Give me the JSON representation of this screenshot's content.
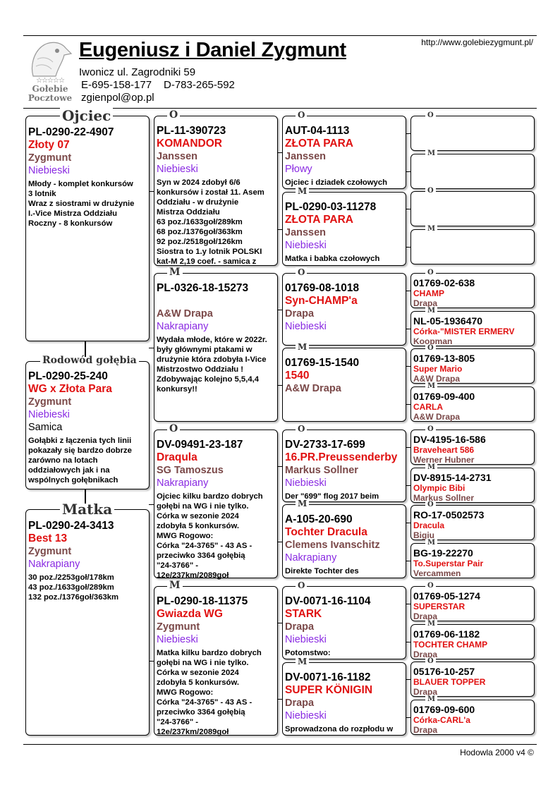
{
  "header": {
    "title": "Eugeniusz i Daniel Zygmunt",
    "url": "http://www.golebiezygmunt.pl/",
    "address": "Iwonicz ul. Zagrodniki 59",
    "phone_e": "E-695-158-177",
    "phone_d": "D-783-265-592",
    "email": "zgienpol@op.pl",
    "logo_text_1": "Gołebie",
    "logo_text_2": "Pocztowe",
    "logo_stars": "☆☆☆☆☆"
  },
  "footer": "Hodowla 2000 v4 ©",
  "main": [
    {
      "label": "Ojciec",
      "ring": "PL-0290-22-4907",
      "name": "Złoty 07",
      "breeder": "Zygmunt",
      "color": "Niebieski",
      "notes": [
        "Młody - komplet konkursów",
        "3 lotnik",
        "Wraz z siostrami w drużynie",
        "I.-Vice Mistrza Oddziału",
        "Roczny - 8 konkursów"
      ]
    },
    {
      "label": "Rodowód gołębia",
      "ring": "PL-0290-25-240",
      "name": "WG x Złota Para",
      "breeder": "Zygmunt",
      "color": "Niebieski",
      "sex": "Samica",
      "notes": [
        "Gołąbki z łączenia tych linii",
        "pokazały się bardzo dobrze",
        "zarówno na lotach",
        "oddziałowych jak i na",
        "wspólnych gołębnikach"
      ]
    },
    {
      "label": "Matka",
      "ring": "PL-0290-24-3413",
      "name": "Best 13",
      "breeder": "Zygmunt",
      "color": "Nakrapiany",
      "notes": [
        "30 poz./2253goł/178km",
        "43 poz./1633goł/289km",
        "132 poz./1376goł/363km"
      ]
    }
  ],
  "gen2": [
    {
      "label": "O",
      "ring": "PL-11-390723",
      "name": "KOMANDOR",
      "breeder": "Janssen",
      "color": "Niebieski",
      "notes": [
        "Syn w 2024 zdobył 6/6",
        "konkursów i został 11. Asem",
        "Oddziału - w drużynie",
        "Mistrza Oddziału",
        "63 poz./1633goł/289km",
        "68 poz./1376goł/363km",
        "92 poz./2518goł/126km",
        "Siostra to 1.y lotnik POLSKI",
        "kat-M 2,19 coef. - samica z"
      ]
    },
    {
      "label": "M",
      "ring": "PL-0326-18-15273",
      "name": "",
      "breeder": "A&W Drapa",
      "color": "Nakrapiany",
      "notes": [
        "Wydała młode, które w 2022r.",
        "były głównymi ptakami w",
        "drużynie która zdobyła I-Vice",
        "Mistrzostwo Oddziału !",
        "Zdobywając kolejno 5,5,4,4",
        "konkursy!!"
      ]
    },
    {
      "label": "O",
      "ring": "DV-09491-23-187",
      "name": "Draqula",
      "breeder": "SG Tamoszus",
      "color": "Nakrapiany",
      "notes": [
        "Ojciec kilku bardzo dobrych",
        "gołębi na WG i nie tylko.",
        "Córka w sezonie 2024",
        "zdobyła 5 konkursów.",
        "MWG Rogowo:",
        "Córka \"24-3765\" - 43 AS -",
        "przeciwko 3364 gołębią",
        "\"24-3766\" -",
        "12e/237km/2089goł"
      ]
    },
    {
      "label": "M",
      "ring": "PL-0290-18-11375",
      "name": "Gwiazda WG",
      "breeder": "Zygmunt",
      "color": "Niebieski",
      "notes": [
        "Matka kilku bardzo dobrych",
        "gołębi na WG i nie tylko.",
        "Córka w sezonie 2024",
        "zdobyła 5 konkursów.",
        "MWG Rogowo:",
        "Córka \"24-3765\" - 43 AS -",
        "przeciwko 3364 gołębią",
        "\"24-3766\" -",
        "12e/237km/2089goł"
      ]
    }
  ],
  "gen3": [
    {
      "label": "O",
      "ring": "AUT-04-1113",
      "name": "ZŁOTA PARA",
      "breeder": "Janssen",
      "color": "Płowy",
      "notes": [
        "Ojciec i dziadek czołowych"
      ]
    },
    {
      "label": "M",
      "ring": "PL-0290-03-11278",
      "name": "ZŁOTA PARA",
      "breeder": "Janssen",
      "color": "Niebieski",
      "notes": [
        "Matka i babka czołowych"
      ]
    },
    {
      "label": "O",
      "ring": "01769-08-1018",
      "name": "Syn-CHAMP'a",
      "breeder": "Drapa",
      "color": "Niebieski",
      "notes": []
    },
    {
      "label": "M",
      "ring": "01769-15-1540",
      "name": "1540",
      "breeder": "A&W Drapa",
      "notes": []
    },
    {
      "label": "O",
      "ring": "DV-2733-17-699",
      "name": "16.PR.Preussenderby",
      "breeder": "Markus Sollner",
      "color": "Niebieski",
      "notes": [
        "Der \"699\" flog 2017 beim"
      ]
    },
    {
      "label": "M",
      "ring": "A-105-20-690",
      "name": "Tochter Dracula",
      "breeder": "Clemens Ivanschitz",
      "color": "Nakrapiany",
      "notes": [
        "Direkte Tochter des"
      ]
    },
    {
      "label": "O",
      "ring": "DV-0071-16-1104",
      "name": "STARK",
      "breeder": "Drapa",
      "color": "Niebieski",
      "notes": [
        "Potomstwo:"
      ]
    },
    {
      "label": "M",
      "ring": "DV-0071-16-1182",
      "name": "SUPER KÖNIGIN",
      "breeder": "Drapa",
      "color": "Niebieski",
      "notes": [
        "Sprowadzona do rozpłodu w"
      ]
    }
  ],
  "gen4": [
    {
      "label": "O"
    },
    {
      "label": "M"
    },
    {
      "label": "O"
    },
    {
      "label": "M"
    },
    {
      "label": "O",
      "ring": "01769-02-638",
      "name": "CHAMP",
      "breeder": "Drapa"
    },
    {
      "label": "M",
      "ring": "NL-05-1936470",
      "name": "Córka-\"MISTER ERMERV",
      "breeder": "Koopman"
    },
    {
      "label": "O",
      "ring": "01769-13-805",
      "name": "Super Mario",
      "breeder": "A&W Drapa"
    },
    {
      "label": "M",
      "ring": "01769-09-400",
      "name": "CARLA",
      "breeder": "A&W Drapa"
    },
    {
      "label": "O",
      "ring": "DV-4195-16-586",
      "name": "Braveheart 586",
      "breeder": "Werner Hubner"
    },
    {
      "label": "M",
      "ring": "DV-8915-14-2731",
      "name": "Olympic Bibi",
      "breeder": "Markus Sollner"
    },
    {
      "label": "O",
      "ring": "RO-17-0502573",
      "name": "Dracula",
      "breeder": "Bigiu"
    },
    {
      "label": "M",
      "ring": "BG-19-22270",
      "name": "To.Superstar Pair",
      "breeder": "Vercammen"
    },
    {
      "label": "O",
      "ring": "01769-05-1274",
      "name": "SUPERSTAR",
      "breeder": "Drapa"
    },
    {
      "label": "M",
      "ring": "01769-06-1182",
      "name": "TOCHTER CHAMP",
      "breeder": "Drapa"
    },
    {
      "label": "O",
      "ring": "05176-10-257",
      "name": "BLAUER TOPPER",
      "breeder": "Drapa"
    },
    {
      "label": "M",
      "ring": "01769-09-600",
      "name": "Córka-CARL'a",
      "breeder": "Drapa"
    }
  ]
}
